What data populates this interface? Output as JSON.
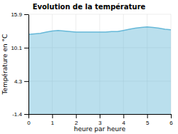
{
  "chart_data": {
    "type": "area",
    "title": "Evolution de la température",
    "xlabel": "heure par heure",
    "ylabel": "Température en °C",
    "x": [
      0.0,
      0.25,
      0.5,
      0.75,
      1.0,
      1.25,
      1.5,
      1.75,
      2.0,
      2.25,
      2.5,
      2.75,
      3.0,
      3.25,
      3.5,
      3.75,
      4.0,
      4.25,
      4.5,
      4.75,
      5.0,
      5.25,
      5.5,
      5.75,
      6.0
    ],
    "values": [
      12.4,
      12.5,
      12.6,
      12.8,
      13.0,
      13.1,
      13.0,
      12.9,
      12.8,
      12.8,
      12.8,
      12.8,
      12.8,
      12.8,
      12.9,
      12.9,
      13.1,
      13.3,
      13.5,
      13.6,
      13.7,
      13.6,
      13.5,
      13.3,
      13.2
    ],
    "color": "#66b8d8",
    "xlim": [
      0,
      6
    ],
    "ylim": [
      -1.4,
      15.9
    ],
    "xticks": [
      0,
      1,
      2,
      3,
      4,
      5,
      6
    ],
    "yticks": [
      -1.4,
      4.3,
      10.1,
      15.9
    ],
    "grid": true
  }
}
